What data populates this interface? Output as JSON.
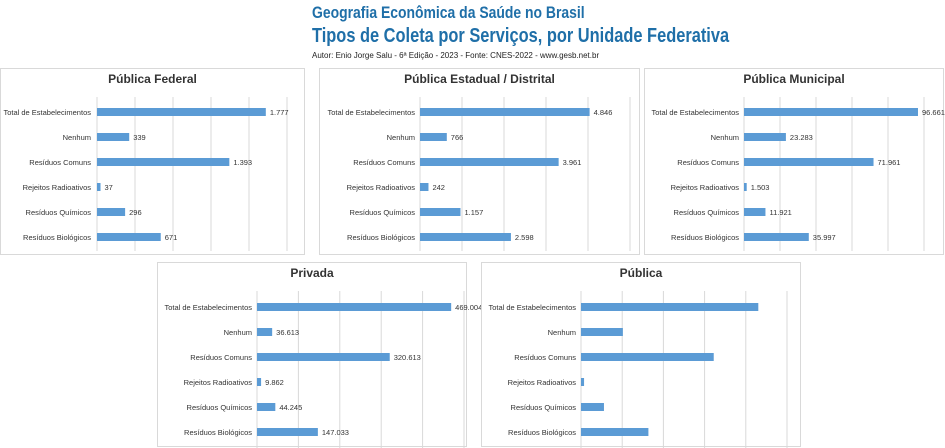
{
  "header": {
    "title_line1": "Geografia Econômica da Saúde no Brasil",
    "title_line2": "Tipos de Coleta por Serviços, por Unidade Federativa",
    "author": "Autor: Enio Jorge Salu - 6ª Edição - 2023 - Fonte: CNES-2022 - www.gesb.net.br"
  },
  "colors": {
    "bar": "#5b9bd5",
    "grid": "#d9d9d9",
    "title_blue": "#1f6fa8"
  },
  "chart_data": [
    {
      "type": "bar",
      "orientation": "horizontal",
      "title": "Pública Federal",
      "categories": [
        "Total de Estabelecimentos",
        "Nenhum",
        "Resíduos Comuns",
        "Rejeitos Radioativos",
        "Resíduos Químicos",
        "Resíduos Biológicos"
      ],
      "values": [
        1777,
        339,
        1393,
        37,
        296,
        671
      ],
      "labels": [
        "1.777",
        "339",
        "1.393",
        "37",
        "296",
        "671"
      ],
      "xlim": [
        0,
        2000
      ],
      "grid": true,
      "show_labels": true
    },
    {
      "type": "bar",
      "orientation": "horizontal",
      "title": "Pública Estadual / Distrital",
      "categories": [
        "Total de Estabelecimentos",
        "Nenhum",
        "Resíduos Comuns",
        "Rejeitos Radioativos",
        "Resíduos Químicos",
        "Resíduos Biológicos"
      ],
      "values": [
        4846,
        766,
        3961,
        242,
        1157,
        2598
      ],
      "labels": [
        "4.846",
        "766",
        "3.961",
        "242",
        "1.157",
        "2.598"
      ],
      "xlim": [
        0,
        6000
      ],
      "grid": true,
      "show_labels": true
    },
    {
      "type": "bar",
      "orientation": "horizontal",
      "title": "Pública Municipal",
      "categories": [
        "Total de Estabelecimentos",
        "Nenhum",
        "Resíduos Comuns",
        "Rejeitos Radioativos",
        "Resíduos Químicos",
        "Resíduos Biológicos"
      ],
      "values": [
        96661,
        23283,
        71961,
        1503,
        11921,
        35997
      ],
      "labels": [
        "96.661",
        "23.283",
        "71.961",
        "1.503",
        "11.921",
        "35.997"
      ],
      "xlim": [
        0,
        100000
      ],
      "grid": true,
      "show_labels": true
    },
    {
      "type": "bar",
      "orientation": "horizontal",
      "title": "Privada",
      "categories": [
        "Total de Estabelecimentos",
        "Nenhum",
        "Resíduos Comuns",
        "Rejeitos Radioativos",
        "Resíduos Químicos",
        "Resíduos Biológicos"
      ],
      "values": [
        469004,
        36613,
        320613,
        9862,
        44245,
        147033
      ],
      "labels": [
        "469.004",
        "36.613",
        "320.613",
        "9.862",
        "44.245",
        "147.033"
      ],
      "xlim": [
        0,
        500000
      ],
      "grid": true,
      "show_labels": true
    },
    {
      "type": "bar",
      "orientation": "horizontal",
      "title": "Pública",
      "categories": [
        "Total de Estabelecimentos",
        "Nenhum",
        "Resíduos Comuns",
        "Rejeitos Radioativos",
        "Resíduos Químicos",
        "Resíduos Biológicos"
      ],
      "values": [
        103284,
        24388,
        77315,
        1782,
        13374,
        39266
      ],
      "labels": [],
      "xlim": [
        0,
        120000
      ],
      "grid": true,
      "show_labels": false
    }
  ]
}
